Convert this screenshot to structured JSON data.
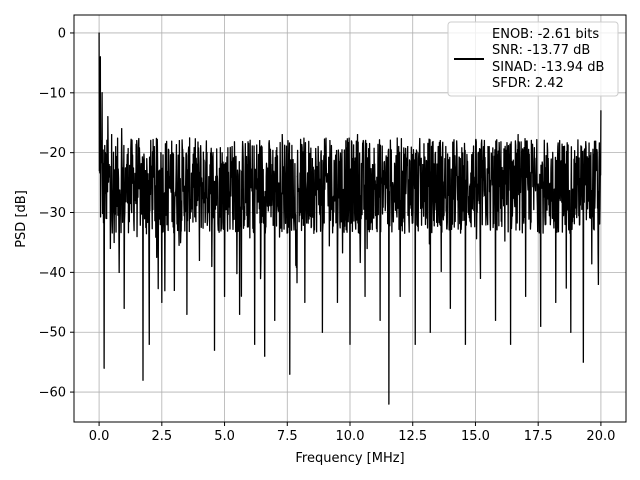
{
  "chart_data": {
    "type": "line",
    "title": "",
    "xlabel": "Frequency [MHz]",
    "ylabel": "PSD [dB]",
    "xlim": [
      -1.0,
      21.0
    ],
    "ylim": [
      -65,
      3
    ],
    "x_ticks": [
      0.0,
      2.5,
      5.0,
      7.5,
      10.0,
      12.5,
      15.0,
      17.5,
      20.0
    ],
    "x_tick_labels": [
      "0.0",
      "2.5",
      "5.0",
      "7.5",
      "10.0",
      "12.5",
      "15.0",
      "17.5",
      "20.0"
    ],
    "y_ticks": [
      0,
      -10,
      -20,
      -30,
      -40,
      -50,
      -60
    ],
    "y_tick_labels": [
      "0",
      "−10",
      "−20",
      "−30",
      "−40",
      "−50",
      "−60"
    ],
    "grid": true,
    "legend_position": "top-right",
    "legend": {
      "line_color": "#000000",
      "lines": [
        "ENOB: -2.61 bits",
        "SNR: -13.77 dB",
        "SINAD: -13.94 dB",
        "SFDR: 2.42"
      ]
    },
    "series": [
      {
        "color": "#000000",
        "description": "dense noise-like PSD trace; values sampled at notable points",
        "x": [
          0.0,
          0.02,
          0.05,
          0.08,
          0.12,
          0.15,
          0.2,
          0.25,
          0.3,
          0.35,
          0.4,
          0.45,
          0.5,
          0.6,
          0.7,
          0.8,
          0.9,
          1.0,
          1.1,
          1.3,
          1.5,
          1.75,
          1.85,
          2.0,
          2.2,
          2.5,
          2.8,
          3.0,
          3.2,
          3.5,
          3.8,
          4.0,
          4.3,
          4.6,
          4.7,
          5.0,
          5.3,
          5.6,
          5.9,
          6.2,
          6.4,
          6.6,
          6.9,
          7.0,
          7.3,
          7.6,
          7.9,
          8.2,
          8.5,
          8.9,
          9.2,
          9.5,
          9.8,
          10.0,
          10.3,
          10.6,
          10.9,
          11.2,
          11.55,
          11.8,
          12.0,
          12.3,
          12.6,
          12.9,
          13.2,
          13.6,
          14.0,
          14.3,
          14.6,
          14.9,
          15.2,
          15.5,
          15.8,
          16.1,
          16.4,
          16.7,
          17.0,
          17.3,
          17.6,
          17.9,
          18.2,
          18.5,
          18.8,
          19.0,
          19.3,
          19.6,
          19.9,
          20.0
        ],
        "y": [
          0,
          -13,
          -4,
          -18,
          -10,
          -22,
          -56,
          -20,
          -31,
          -14,
          -22,
          -36,
          -17,
          -35,
          -24,
          -40,
          -16,
          -46,
          -22,
          -30,
          -18,
          -58,
          -23,
          -52,
          -19,
          -45,
          -24,
          -43,
          -18,
          -47,
          -22,
          -38,
          -20,
          -53,
          -25,
          -44,
          -19,
          -47,
          -22,
          -52,
          -18,
          -54,
          -22,
          -48,
          -17,
          -57,
          -24,
          -45,
          -21,
          -50,
          -18,
          -45,
          -23,
          -52,
          -17,
          -44,
          -22,
          -48,
          -62,
          -23,
          -44,
          -19,
          -52,
          -22,
          -50,
          -18,
          -46,
          -24,
          -52,
          -20,
          -41,
          -19,
          -48,
          -23,
          -52,
          -17,
          -44,
          -24,
          -49,
          -21,
          -45,
          -19,
          -50,
          -23,
          -55,
          -20,
          -42,
          -13
        ]
      }
    ]
  }
}
